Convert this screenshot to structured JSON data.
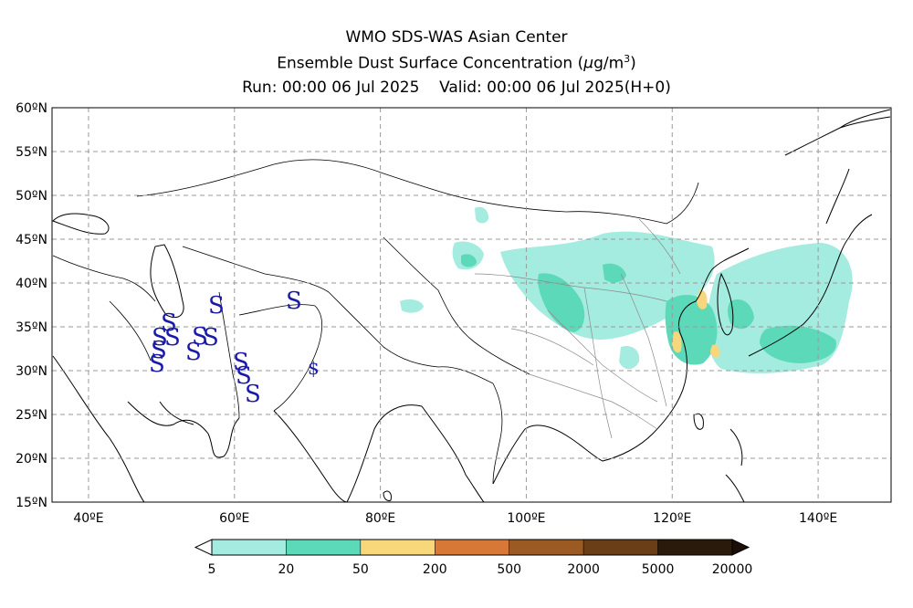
{
  "header": {
    "line1": "WMO SDS-WAS Asian Center",
    "line2_text": "Ensemble Dust Surface Concentration (",
    "line2_mu": "μ",
    "line2_unit": "g/m",
    "line2_sup": "3",
    "line2_close": ")",
    "line3_run": "Run: 00:00 06 Jul 2025",
    "line3_valid": "Valid: 00:00 06 Jul 2025(H+0)"
  },
  "map": {
    "lon_range": [
      35,
      150
    ],
    "lat_range": [
      15,
      60
    ],
    "lat_labels": [
      "60ºN",
      "55ºN",
      "50ºN",
      "45ºN",
      "40ºN",
      "35ºN",
      "30ºN",
      "25ºN",
      "20ºN",
      "15ºN"
    ],
    "lon_labels": [
      "40ºE",
      "60ºE",
      "80ºE",
      "100ºE",
      "120ºE",
      "140ºE"
    ],
    "grid": true,
    "station_symbol": "S",
    "station_symbol_alt": "$",
    "station_color": "#1a1aaa"
  },
  "colorbar": {
    "labels": [
      "5",
      "20",
      "50",
      "200",
      "500",
      "2000",
      "5000",
      "20000"
    ],
    "colors": [
      "#a4ebe0",
      "#5cd9b8",
      "#f7d67c",
      "#d87838",
      "#9a5a22",
      "#6a3e16",
      "#2a1a0c"
    ],
    "extend_low_color": "#ffffff",
    "extend_high_color": "#1a0e06"
  }
}
